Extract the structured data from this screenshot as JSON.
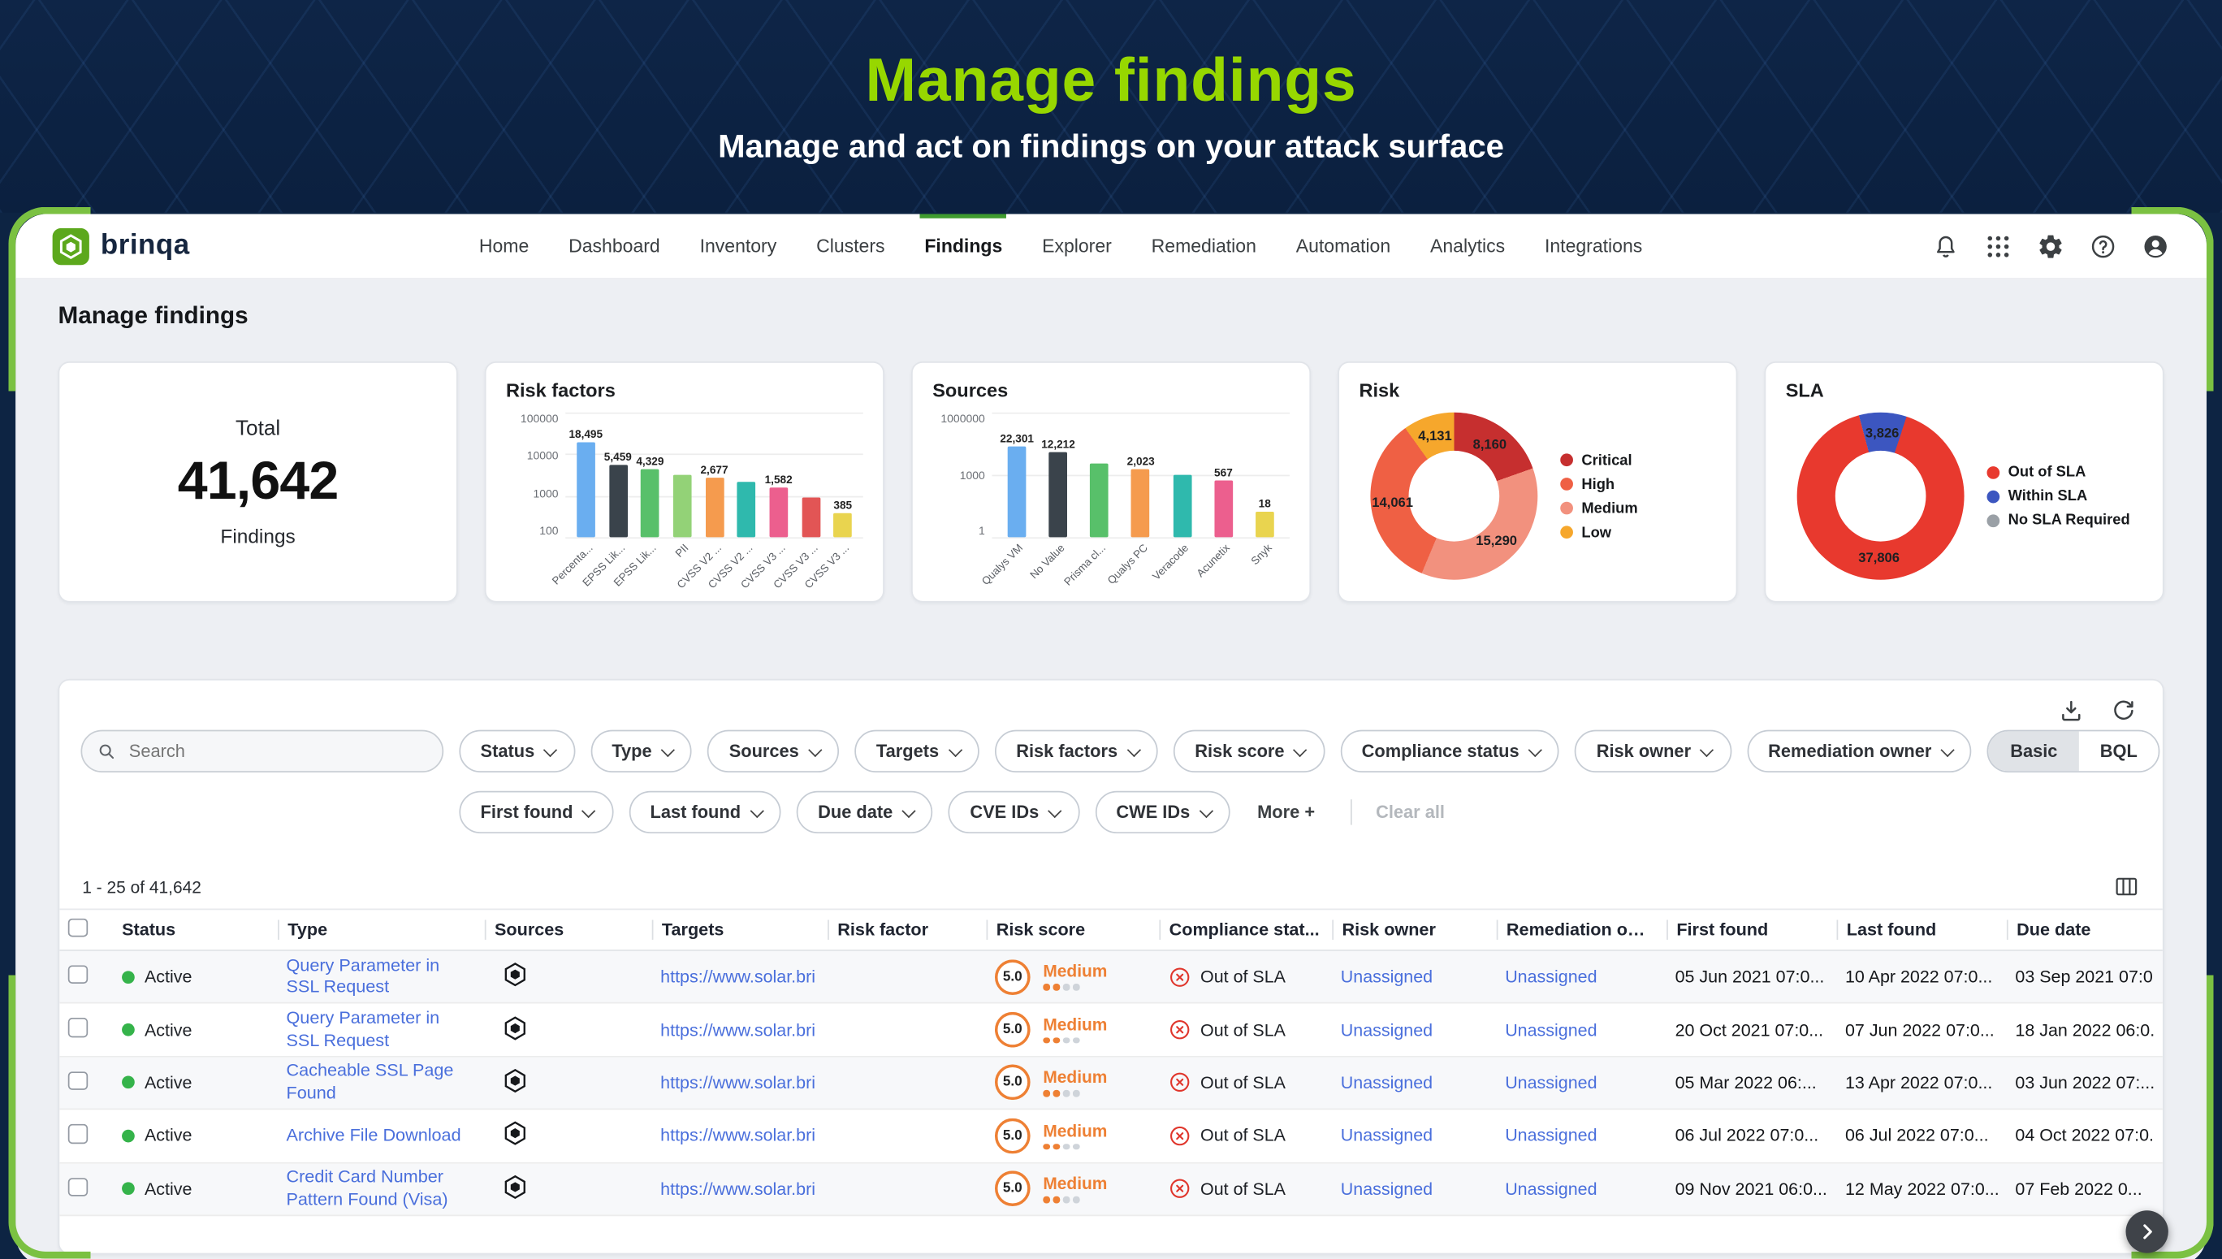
{
  "banner": {
    "title": "Manage findings",
    "subtitle": "Manage and act on findings on your attack surface"
  },
  "brand": {
    "name": "brinqa"
  },
  "colors": {
    "brand_green": "#7bc142",
    "title_green": "#97d700",
    "link_blue": "#4a6fdc",
    "risk_orange": "#ee8034",
    "error_red": "#e0362c",
    "active_green": "#35b34a"
  },
  "nav": {
    "items": [
      {
        "label": "Home",
        "active": false
      },
      {
        "label": "Dashboard",
        "active": false
      },
      {
        "label": "Inventory",
        "active": false
      },
      {
        "label": "Clusters",
        "active": false
      },
      {
        "label": "Findings",
        "active": true
      },
      {
        "label": "Explorer",
        "active": false
      },
      {
        "label": "Remediation",
        "active": false
      },
      {
        "label": "Automation",
        "active": false
      },
      {
        "label": "Analytics",
        "active": false
      },
      {
        "label": "Integrations",
        "active": false
      }
    ],
    "action_icons": [
      "notifications",
      "apps-grid",
      "settings-gear",
      "help",
      "account-avatar"
    ]
  },
  "page": {
    "title": "Manage findings"
  },
  "summary": {
    "total_label": "Total",
    "total_value": "41,642",
    "total_sublabel": "Findings"
  },
  "chart_data": [
    {
      "id": "risk-factors",
      "type": "bar",
      "title": "Risk factors",
      "y_scale": "log",
      "y_ticks": [
        "100000",
        "10000",
        "1000",
        "100"
      ],
      "y_range": [
        100,
        100000
      ],
      "categories": [
        "Percenta...",
        "EPSS Lik...",
        "EPSS Lik...",
        "PII",
        "CVSS V2 ...",
        "CVSS V2 ...",
        "CVSS V3 ...",
        "CVSS V3 ...",
        "CVSS V3 ..."
      ],
      "values": [
        18495,
        5459,
        4329,
        3200,
        2677,
        2100,
        1582,
        900,
        385
      ],
      "value_labels": [
        "18,495",
        "5,459",
        "4,329",
        null,
        "2,677",
        null,
        "1,582",
        null,
        "385"
      ],
      "colors": [
        "#6aaef0",
        "#3a434b",
        "#58c06a",
        "#93d277",
        "#f59b4e",
        "#2fb9ad",
        "#ec5f8e",
        "#e25555",
        "#e9d44f"
      ]
    },
    {
      "id": "sources",
      "type": "bar",
      "title": "Sources",
      "y_scale": "log",
      "y_ticks": [
        "1000000",
        "1000",
        "1"
      ],
      "y_range": [
        1,
        1000000
      ],
      "categories": [
        "Qualys VM",
        "No Value",
        "Prisma cl...",
        "Qualys PC",
        "Veracode",
        "Acunetix",
        "Snyk"
      ],
      "values": [
        22301,
        12212,
        3500,
        2023,
        1021,
        567,
        18
      ],
      "value_labels": [
        "22,301",
        "12,212",
        null,
        "2,023",
        null,
        "567",
        "18"
      ],
      "colors": [
        "#6aaef0",
        "#3a434b",
        "#58c06a",
        "#f59b4e",
        "#2fb9ad",
        "#ec5f8e",
        "#e9d44f"
      ]
    },
    {
      "id": "risk",
      "type": "donut",
      "title": "Risk",
      "start_angle": 0,
      "segments": [
        {
          "label": "Critical",
          "value": 8160,
          "display": "8,160",
          "color": "#c62f2f"
        },
        {
          "label": "Medium",
          "value": 15290,
          "display": "15,290",
          "color": "#f2917e"
        },
        {
          "label": "High",
          "value": 14061,
          "display": "14,061",
          "color": "#ef6044"
        },
        {
          "label": "Low",
          "value": 4131,
          "display": "4,131",
          "color": "#f6a72c"
        }
      ],
      "legend": [
        {
          "label": "Critical",
          "color": "#c62f2f"
        },
        {
          "label": "High",
          "color": "#ef6044"
        },
        {
          "label": "Medium",
          "color": "#f2917e"
        },
        {
          "label": "Low",
          "color": "#f6a72c"
        }
      ]
    },
    {
      "id": "sla",
      "type": "donut",
      "title": "SLA",
      "start_angle": -15,
      "segments": [
        {
          "label": "Within SLA",
          "value": 3826,
          "display": "3,826",
          "color": "#3c56c0"
        },
        {
          "label": "Out of SLA",
          "value": 37806,
          "display": "37,806",
          "color": "#e8392e"
        },
        {
          "label": "No SLA Required",
          "value": 10,
          "display": "",
          "color": "#9aa0a6"
        }
      ],
      "legend": [
        {
          "label": "Out of SLA",
          "color": "#e8392e"
        },
        {
          "label": "Within SLA",
          "color": "#3c56c0"
        },
        {
          "label": "No SLA Required",
          "color": "#9aa0a6"
        }
      ]
    }
  ],
  "toolbar": {
    "view_toggle": [
      "Basic",
      "BQL"
    ],
    "active_view": "Basic"
  },
  "panel_icons": [
    "download",
    "refresh",
    "columns"
  ],
  "filters": {
    "search_placeholder": "Search",
    "row1": [
      "Status",
      "Type",
      "Sources",
      "Targets",
      "Risk factors",
      "Risk score",
      "Compliance status",
      "Risk owner",
      "Remediation owner"
    ],
    "row2": [
      "First found",
      "Last found",
      "Due date",
      "CVE IDs",
      "CWE IDs"
    ],
    "more_label": "More  +",
    "clear_label": "Clear all"
  },
  "results": {
    "count_text": "1 - 25 of 41,642"
  },
  "table": {
    "columns": [
      "Status",
      "Type",
      "Sources",
      "Targets",
      "Risk factor",
      "Risk score",
      "Compliance stat...",
      "Risk owner",
      "Remediation own...",
      "First found",
      "Last found",
      "Due date"
    ],
    "rows": [
      {
        "status": "Active",
        "type": "Query Parameter in SSL Request",
        "source_icon": "brinqa",
        "target": "https://www.solar.bri",
        "risk_factor": "",
        "risk_score": "5.0",
        "severity": "Medium",
        "severity_dots_filled": 2,
        "severity_dots_total": 4,
        "compliance": "Out of SLA",
        "risk_owner": "Unassigned",
        "remediation_owner": "Unassigned",
        "first_found": "05 Jun 2021 07:0...",
        "last_found": "10 Apr 2022 07:0...",
        "due_date": "03 Sep 2021 07:0..."
      },
      {
        "status": "Active",
        "type": "Query Parameter in SSL Request",
        "source_icon": "brinqa",
        "target": "https://www.solar.bri",
        "risk_factor": "",
        "risk_score": "5.0",
        "severity": "Medium",
        "severity_dots_filled": 2,
        "severity_dots_total": 4,
        "compliance": "Out of SLA",
        "risk_owner": "Unassigned",
        "remediation_owner": "Unassigned",
        "first_found": "20 Oct 2021 07:0...",
        "last_found": "07 Jun 2022 07:0...",
        "due_date": "18 Jan 2022 06:0..."
      },
      {
        "status": "Active",
        "type": "Cacheable SSL Page Found",
        "source_icon": "brinqa",
        "target": "https://www.solar.bri",
        "risk_factor": "",
        "risk_score": "5.0",
        "severity": "Medium",
        "severity_dots_filled": 2,
        "severity_dots_total": 4,
        "compliance": "Out of SLA",
        "risk_owner": "Unassigned",
        "remediation_owner": "Unassigned",
        "first_found": "05 Mar 2022 06:...",
        "last_found": "13 Apr 2022 07:0...",
        "due_date": "03 Jun 2022 07:..."
      },
      {
        "status": "Active",
        "type": "Archive File Download",
        "source_icon": "brinqa",
        "target": "https://www.solar.bri",
        "risk_factor": "",
        "risk_score": "5.0",
        "severity": "Medium",
        "severity_dots_filled": 2,
        "severity_dots_total": 4,
        "compliance": "Out of SLA",
        "risk_owner": "Unassigned",
        "remediation_owner": "Unassigned",
        "first_found": "06 Jul 2022 07:0...",
        "last_found": "06 Jul 2022 07:0...",
        "due_date": "04 Oct 2022 07:0..."
      },
      {
        "status": "Active",
        "type": "Credit Card Number Pattern Found (Visa)",
        "source_icon": "brinqa",
        "target": "https://www.solar.bri",
        "risk_factor": "",
        "risk_score": "5.0",
        "severity": "Medium",
        "severity_dots_filled": 2,
        "severity_dots_total": 4,
        "compliance": "Out of SLA",
        "risk_owner": "Unassigned",
        "remediation_owner": "Unassigned",
        "first_found": "09 Nov 2021 06:0...",
        "last_found": "12 May 2022 07:0...",
        "due_date": "07 Feb 2022 0..."
      }
    ]
  }
}
